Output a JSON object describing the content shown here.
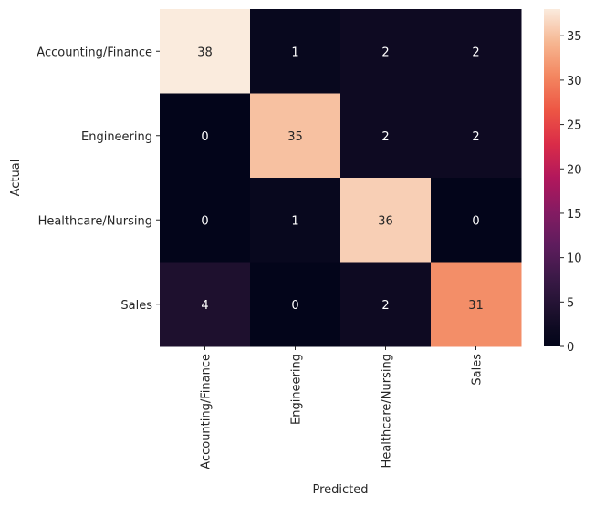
{
  "chart_data": {
    "type": "heatmap",
    "title": "",
    "xlabel": "Predicted",
    "ylabel": "Actual",
    "x_categories": [
      "Accounting/Finance",
      "Engineering",
      "Healthcare/Nursing",
      "Sales"
    ],
    "y_categories": [
      "Accounting/Finance",
      "Engineering",
      "Healthcare/Nursing",
      "Sales"
    ],
    "values": [
      [
        38,
        1,
        2,
        2
      ],
      [
        0,
        35,
        2,
        2
      ],
      [
        0,
        1,
        36,
        0
      ],
      [
        4,
        0,
        2,
        31
      ]
    ],
    "colorbar": {
      "range": [
        0,
        38
      ],
      "ticks": [
        0,
        5,
        10,
        15,
        20,
        25,
        30,
        35
      ],
      "colormap": "rocket"
    },
    "grid": false
  }
}
